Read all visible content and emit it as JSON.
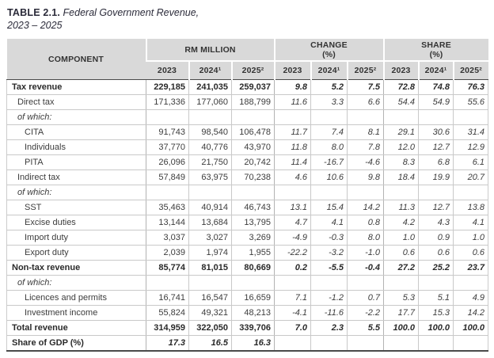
{
  "title": {
    "prefix": "TABLE 2.1.",
    "main": " Federal Government Revenue,",
    "line2": "2023 – 2025"
  },
  "colors": {
    "header_bg": "#d9d9d9",
    "border_light": "#c9c9c9",
    "border_dark": "#4a4a4a",
    "title_text": "#2b2b3a",
    "body_text": "#3c3c3c"
  },
  "table": {
    "component_header": "COMPONENT",
    "groups": [
      {
        "line1": "RM MILLION",
        "line2": ""
      },
      {
        "line1": "CHANGE",
        "line2": "(%)"
      },
      {
        "line1": "SHARE",
        "line2": "(%)"
      }
    ],
    "years": [
      "2023",
      "2024¹",
      "2025²"
    ],
    "rows": [
      {
        "label": "Tax revenue",
        "style": "section",
        "indent": 0,
        "rm": [
          "229,185",
          "241,035",
          "259,037"
        ],
        "change": [
          "9.8",
          "5.2",
          "7.5"
        ],
        "share": [
          "72.8",
          "74.8",
          "76.3"
        ]
      },
      {
        "label": "Direct tax",
        "style": "normal",
        "indent": 1,
        "rm": [
          "171,336",
          "177,060",
          "188,799"
        ],
        "change": [
          "11.6",
          "3.3",
          "6.6"
        ],
        "share": [
          "54.4",
          "54.9",
          "55.6"
        ]
      },
      {
        "label": "of which:",
        "style": "ofwhich",
        "indent": 1,
        "rm": [
          "",
          "",
          ""
        ],
        "change": [
          "",
          "",
          ""
        ],
        "share": [
          "",
          "",
          ""
        ]
      },
      {
        "label": "CITA",
        "style": "normal",
        "indent": 2,
        "rm": [
          "91,743",
          "98,540",
          "106,478"
        ],
        "change": [
          "11.7",
          "7.4",
          "8.1"
        ],
        "share": [
          "29.1",
          "30.6",
          "31.4"
        ]
      },
      {
        "label": "Individuals",
        "style": "normal",
        "indent": 2,
        "rm": [
          "37,770",
          "40,776",
          "43,970"
        ],
        "change": [
          "11.8",
          "8.0",
          "7.8"
        ],
        "share": [
          "12.0",
          "12.7",
          "12.9"
        ]
      },
      {
        "label": "PITA",
        "style": "normal",
        "indent": 2,
        "rm": [
          "26,096",
          "21,750",
          "20,742"
        ],
        "change": [
          "11.4",
          "-16.7",
          "-4.6"
        ],
        "share": [
          "8.3",
          "6.8",
          "6.1"
        ]
      },
      {
        "label": "Indirect tax",
        "style": "normal",
        "indent": 1,
        "rm": [
          "57,849",
          "63,975",
          "70,238"
        ],
        "change": [
          "4.6",
          "10.6",
          "9.8"
        ],
        "share": [
          "18.4",
          "19.9",
          "20.7"
        ]
      },
      {
        "label": "of which:",
        "style": "ofwhich",
        "indent": 1,
        "rm": [
          "",
          "",
          ""
        ],
        "change": [
          "",
          "",
          ""
        ],
        "share": [
          "",
          "",
          ""
        ]
      },
      {
        "label": "SST",
        "style": "normal",
        "indent": 2,
        "rm": [
          "35,463",
          "40,914",
          "46,743"
        ],
        "change": [
          "13.1",
          "15.4",
          "14.2"
        ],
        "share": [
          "11.3",
          "12.7",
          "13.8"
        ]
      },
      {
        "label": "Excise duties",
        "style": "normal",
        "indent": 2,
        "rm": [
          "13,144",
          "13,684",
          "13,795"
        ],
        "change": [
          "4.7",
          "4.1",
          "0.8"
        ],
        "share": [
          "4.2",
          "4.3",
          "4.1"
        ]
      },
      {
        "label": "Import duty",
        "style": "normal",
        "indent": 2,
        "rm": [
          "3,037",
          "3,027",
          "3,269"
        ],
        "change": [
          "-4.9",
          "-0.3",
          "8.0"
        ],
        "share": [
          "1.0",
          "0.9",
          "1.0"
        ]
      },
      {
        "label": "Export duty",
        "style": "normal",
        "indent": 2,
        "rm": [
          "2,039",
          "1,974",
          "1,955"
        ],
        "change": [
          "-22.2",
          "-3.2",
          "-1.0"
        ],
        "share": [
          "0.6",
          "0.6",
          "0.6"
        ]
      },
      {
        "label": "Non-tax revenue",
        "style": "section",
        "indent": 0,
        "rm": [
          "85,774",
          "81,015",
          "80,669"
        ],
        "change": [
          "0.2",
          "-5.5",
          "-0.4"
        ],
        "share": [
          "27.2",
          "25.2",
          "23.7"
        ]
      },
      {
        "label": "of which:",
        "style": "ofwhich",
        "indent": 1,
        "rm": [
          "",
          "",
          ""
        ],
        "change": [
          "",
          "",
          ""
        ],
        "share": [
          "",
          "",
          ""
        ]
      },
      {
        "label": "Licences and permits",
        "style": "normal",
        "indent": 2,
        "rm": [
          "16,741",
          "16,547",
          "16,659"
        ],
        "change": [
          "7.1",
          "-1.2",
          "0.7"
        ],
        "share": [
          "5.3",
          "5.1",
          "4.9"
        ]
      },
      {
        "label": "Investment income",
        "style": "normal",
        "indent": 2,
        "rm": [
          "55,824",
          "49,321",
          "48,213"
        ],
        "change": [
          "-4.1",
          "-11.6",
          "-2.2"
        ],
        "share": [
          "17.7",
          "15.3",
          "14.2"
        ]
      },
      {
        "label": "Total revenue",
        "style": "total",
        "indent": 0,
        "rm": [
          "314,959",
          "322,050",
          "339,706"
        ],
        "change": [
          "7.0",
          "2.3",
          "5.5"
        ],
        "share": [
          "100.0",
          "100.0",
          "100.0"
        ]
      },
      {
        "label": "Share of GDP (%)",
        "style": "gdp",
        "indent": 0,
        "rm": [
          "17.3",
          "16.5",
          "16.3"
        ],
        "change": [
          "",
          "",
          ""
        ],
        "share": [
          "",
          "",
          ""
        ]
      }
    ]
  }
}
